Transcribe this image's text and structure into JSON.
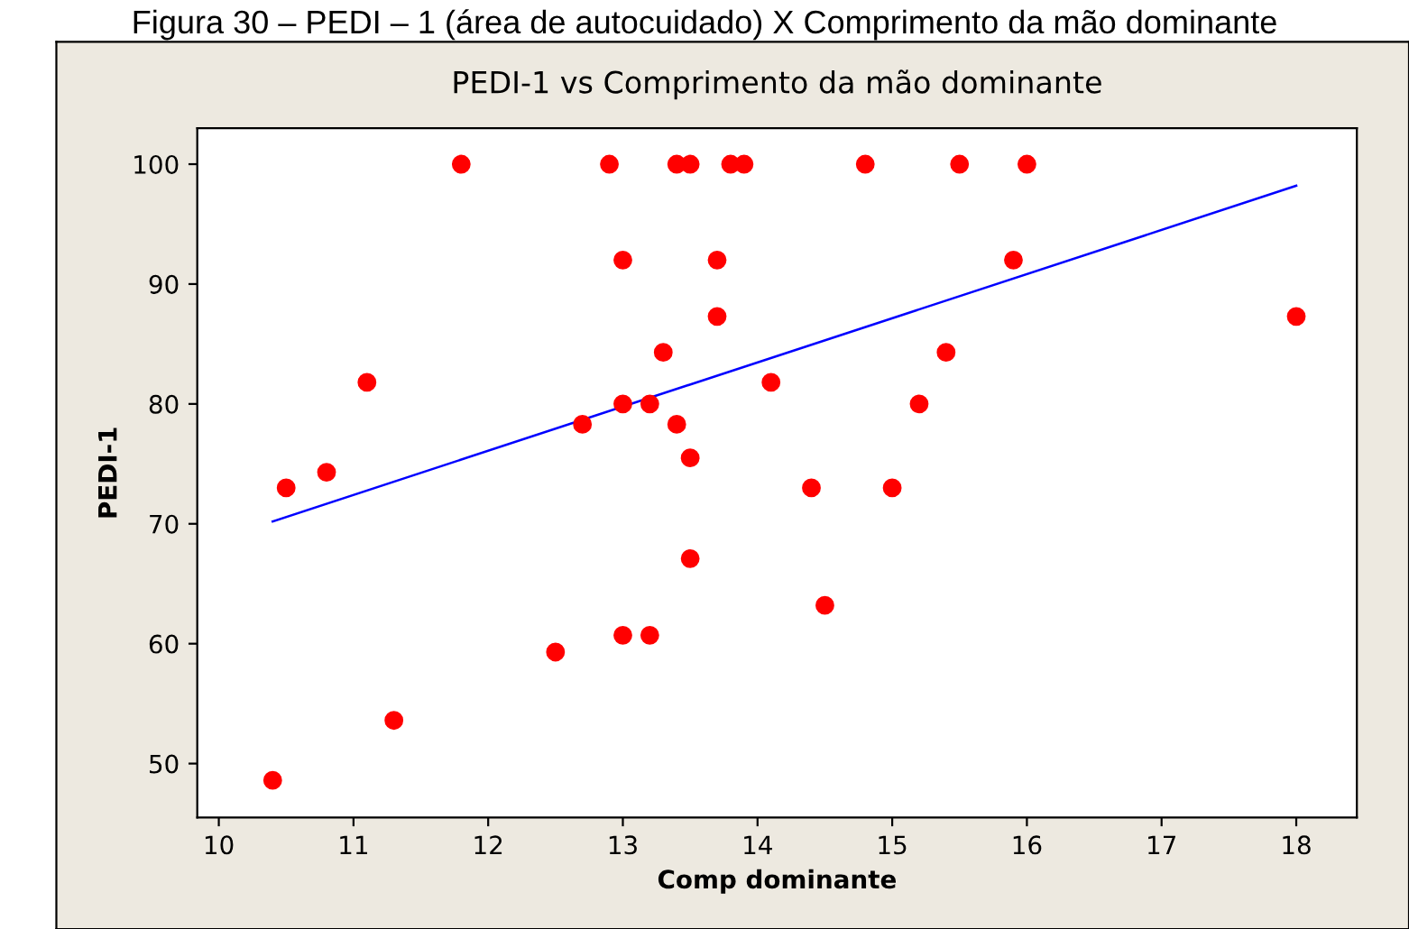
{
  "chart_data": {
    "type": "scatter",
    "title": "PEDI-1 vs Comprimento da mão dominante",
    "xlabel": "Comp dominante",
    "ylabel": "PEDI-1",
    "annotations": [
      "Figura 30 – PEDI – 1 (área de autocuidado) X Comprimento da mão dominante"
    ],
    "series": [
      {
        "marker": "circle",
        "color": "#ff0000",
        "x": [
          10.4,
          10.5,
          10.8,
          11.1,
          11.3,
          11.8,
          12.5,
          12.7,
          12.9,
          13.0,
          13.0,
          13.0,
          13.2,
          13.2,
          13.3,
          13.4,
          13.4,
          13.5,
          13.5,
          13.5,
          13.7,
          13.7,
          13.8,
          13.9,
          14.1,
          14.4,
          14.5,
          14.8,
          15.0,
          15.2,
          15.4,
          15.5,
          15.9,
          16.0,
          18.0
        ],
        "values": [
          48.6,
          73,
          74.3,
          81.8,
          53.6,
          100,
          59.3,
          78.3,
          100,
          92,
          80,
          60.7,
          80,
          60.7,
          84.3,
          100,
          78.3,
          100,
          75.5,
          67.1,
          92,
          87.3,
          100,
          100,
          81.8,
          73,
          63.2,
          100,
          73,
          80,
          84.3,
          100,
          92,
          100,
          87.3
        ]
      },
      {
        "type": "line",
        "color": "#0000ff",
        "x": [
          10.4,
          18.0
        ],
        "values": [
          70.2,
          98.2
        ]
      }
    ],
    "xlim": [
      9.84,
      18.45
    ],
    "ylim": [
      45.5,
      103
    ],
    "xticks": [
      10,
      11,
      12,
      13,
      14,
      15,
      16,
      17,
      18
    ],
    "yticks": [
      50,
      60,
      70,
      80,
      90,
      100
    ],
    "grid": false,
    "legend": false
  }
}
